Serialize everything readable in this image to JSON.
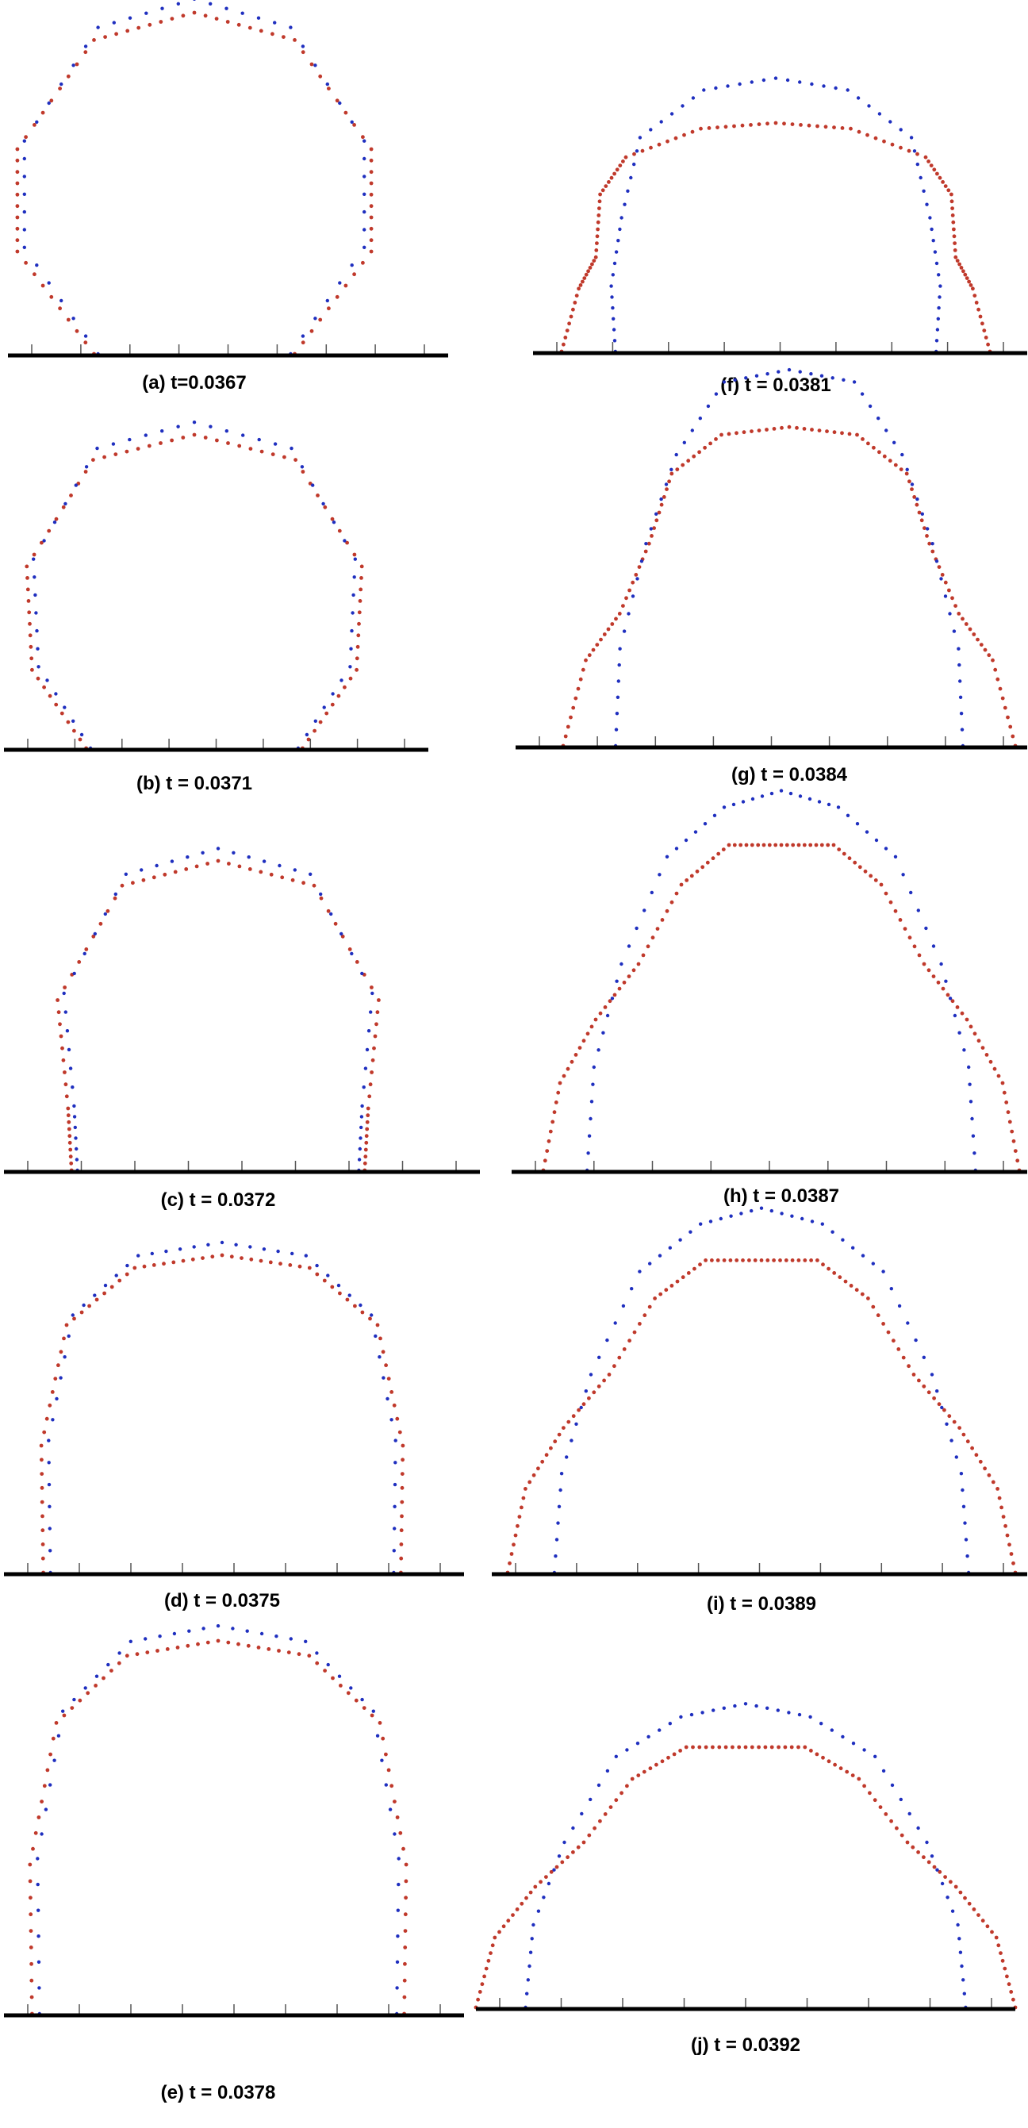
{
  "colors": {
    "red_series": "#c0392b",
    "blue_series": "#1f2fbf",
    "ground": "#000000",
    "background": "#ffffff"
  },
  "panels": [
    {
      "id": "a",
      "caption": "(a) t=0.0367"
    },
    {
      "id": "b",
      "caption": "(b) t = 0.0371"
    },
    {
      "id": "c",
      "caption": "(c) t = 0.0372"
    },
    {
      "id": "d",
      "caption": "(d) t = 0.0375"
    },
    {
      "id": "e",
      "caption": "(e) t = 0.0378"
    },
    {
      "id": "f",
      "caption": "(f) t = 0.0381"
    },
    {
      "id": "g",
      "caption": "(g) t = 0.0384"
    },
    {
      "id": "h",
      "caption": "(h) t = 0.0387"
    },
    {
      "id": "i",
      "caption": "(i) t = 0.0389"
    },
    {
      "id": "j",
      "caption": "(j) t = 0.0392"
    }
  ]
}
